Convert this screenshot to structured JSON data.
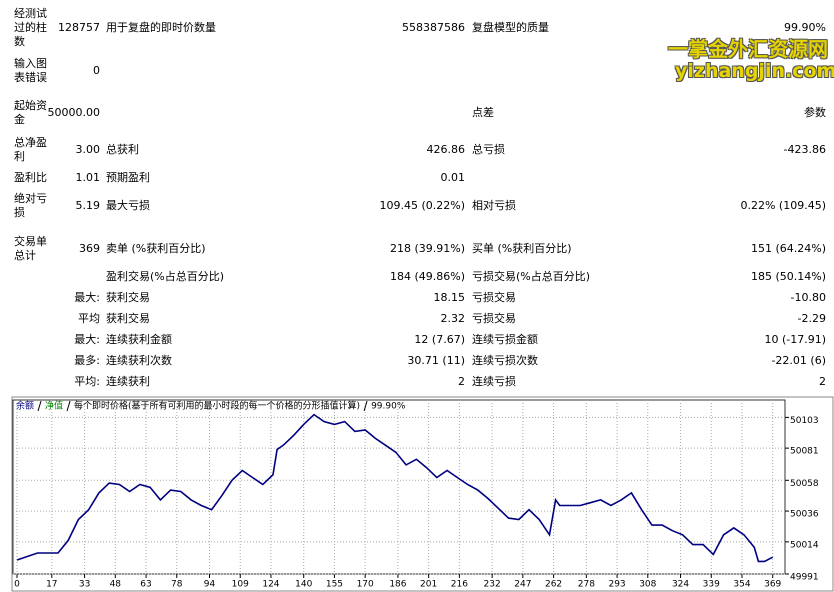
{
  "report": {
    "rows": [
      {
        "l1": "经测试过的柱数",
        "v1": "128757",
        "l2": "用于复盘的即时价数量",
        "v2": "558387586",
        "l3": "复盘模型的质量",
        "v3": "99.90%"
      },
      {
        "l1": "输入图表错误",
        "v1": "0"
      },
      {
        "l1": "起始资金",
        "v1": "50000.00",
        "l3": "点差",
        "v3": "参数"
      },
      {
        "l1": "总净盈利",
        "v1": "3.00",
        "l2": "总获利",
        "v2": "426.86",
        "l3": "总亏损",
        "v3": "-423.86"
      },
      {
        "l1": "盈利比",
        "v1": "1.01",
        "l2": "预期盈利",
        "v2": "0.01"
      },
      {
        "l1": "绝对亏损",
        "v1": "5.19",
        "l2": "最大亏损",
        "v2": "109.45 (0.22%)",
        "l3": "相对亏损",
        "v3": "0.22% (109.45)"
      },
      {
        "l1": "交易单总计",
        "v1": "369",
        "l2": "卖单 (%获利百分比)",
        "v2": "218 (39.91%)",
        "l3": "买单 (%获利百分比)",
        "v3": "151 (64.24%)"
      },
      {
        "l2": "盈利交易(%占总百分比)",
        "v2": "184 (49.86%)",
        "l3": "亏损交易(%占总百分比)",
        "v3": "185 (50.14%)"
      },
      {
        "v1": "最大:",
        "l2": "获利交易",
        "v2": "18.15",
        "l3": "亏损交易",
        "v3": "-10.80"
      },
      {
        "v1": "平均",
        "l2": "获利交易",
        "v2": "2.32",
        "l3": "亏损交易",
        "v3": "-2.29"
      },
      {
        "v1": "最大:",
        "l2": "连续获利金额",
        "v2": "12 (7.67)",
        "l3": "连续亏损金额",
        "v3": "10 (-17.91)"
      },
      {
        "v1": "最多:",
        "l2": "连续获利次数",
        "v2": "30.71 (11)",
        "l3": "连续亏损次数",
        "v3": "-22.01 (6)"
      },
      {
        "v1": "平均:",
        "l2": "连续获利",
        "v2": "2",
        "l3": "连续亏损",
        "v3": "2"
      }
    ]
  },
  "watermark": {
    "title": "一掌金外汇资源网",
    "url": "yizhangjin.com"
  },
  "chart_data": {
    "type": "line",
    "legend_notes": [
      "净值",
      "每个即时价格(基于所有可利用的最小时段的每一个价格的分形插值计算)",
      "99.90%"
    ],
    "x": [
      0,
      10,
      20,
      25,
      30,
      35,
      40,
      45,
      50,
      55,
      60,
      65,
      70,
      75,
      80,
      85,
      90,
      95,
      100,
      105,
      110,
      115,
      120,
      125,
      127,
      130,
      135,
      140,
      145,
      150,
      155,
      160,
      165,
      170,
      175,
      180,
      185,
      190,
      195,
      200,
      205,
      210,
      215,
      220,
      225,
      230,
      235,
      240,
      245,
      250,
      255,
      260,
      263,
      265,
      270,
      275,
      280,
      285,
      290,
      295,
      300,
      305,
      310,
      315,
      320,
      325,
      330,
      335,
      340,
      345,
      350,
      355,
      360,
      362,
      365,
      369
    ],
    "series": [
      {
        "name": "余额",
        "color": "#000080",
        "values": [
          50001,
          50006,
          50006,
          50015,
          50030,
          50037,
          50049,
          50056,
          50055,
          50050,
          50055,
          50053,
          50044,
          50051,
          50050,
          50044,
          50040,
          50037,
          50047,
          50058,
          50065,
          50060,
          50055,
          50062,
          50080,
          50083,
          50090,
          50098,
          50105,
          50100,
          50098,
          50100,
          50093,
          50094,
          50088,
          50083,
          50078,
          50069,
          50073,
          50067,
          50060,
          50065,
          50060,
          50055,
          50051,
          50045,
          50038,
          50031,
          50030,
          50037,
          50030,
          50019,
          50044,
          50040,
          50040,
          50040,
          50042,
          50044,
          50040,
          50044,
          50049,
          50037,
          50026,
          50026,
          50022,
          50019,
          50012,
          50012,
          50005,
          50019,
          50024,
          50019,
          50010,
          50000,
          50000,
          50003
        ]
      }
    ],
    "xlim": [
      0,
      375
    ],
    "ylim": [
      49991,
      50114
    ],
    "xticks": [
      0,
      17,
      33,
      48,
      63,
      78,
      94,
      109,
      124,
      140,
      155,
      170,
      186,
      201,
      216,
      232,
      247,
      262,
      278,
      293,
      308,
      324,
      339,
      354,
      369
    ],
    "yticks": [
      49991,
      50014,
      50036,
      50058,
      50081,
      50103
    ],
    "grid": true
  }
}
